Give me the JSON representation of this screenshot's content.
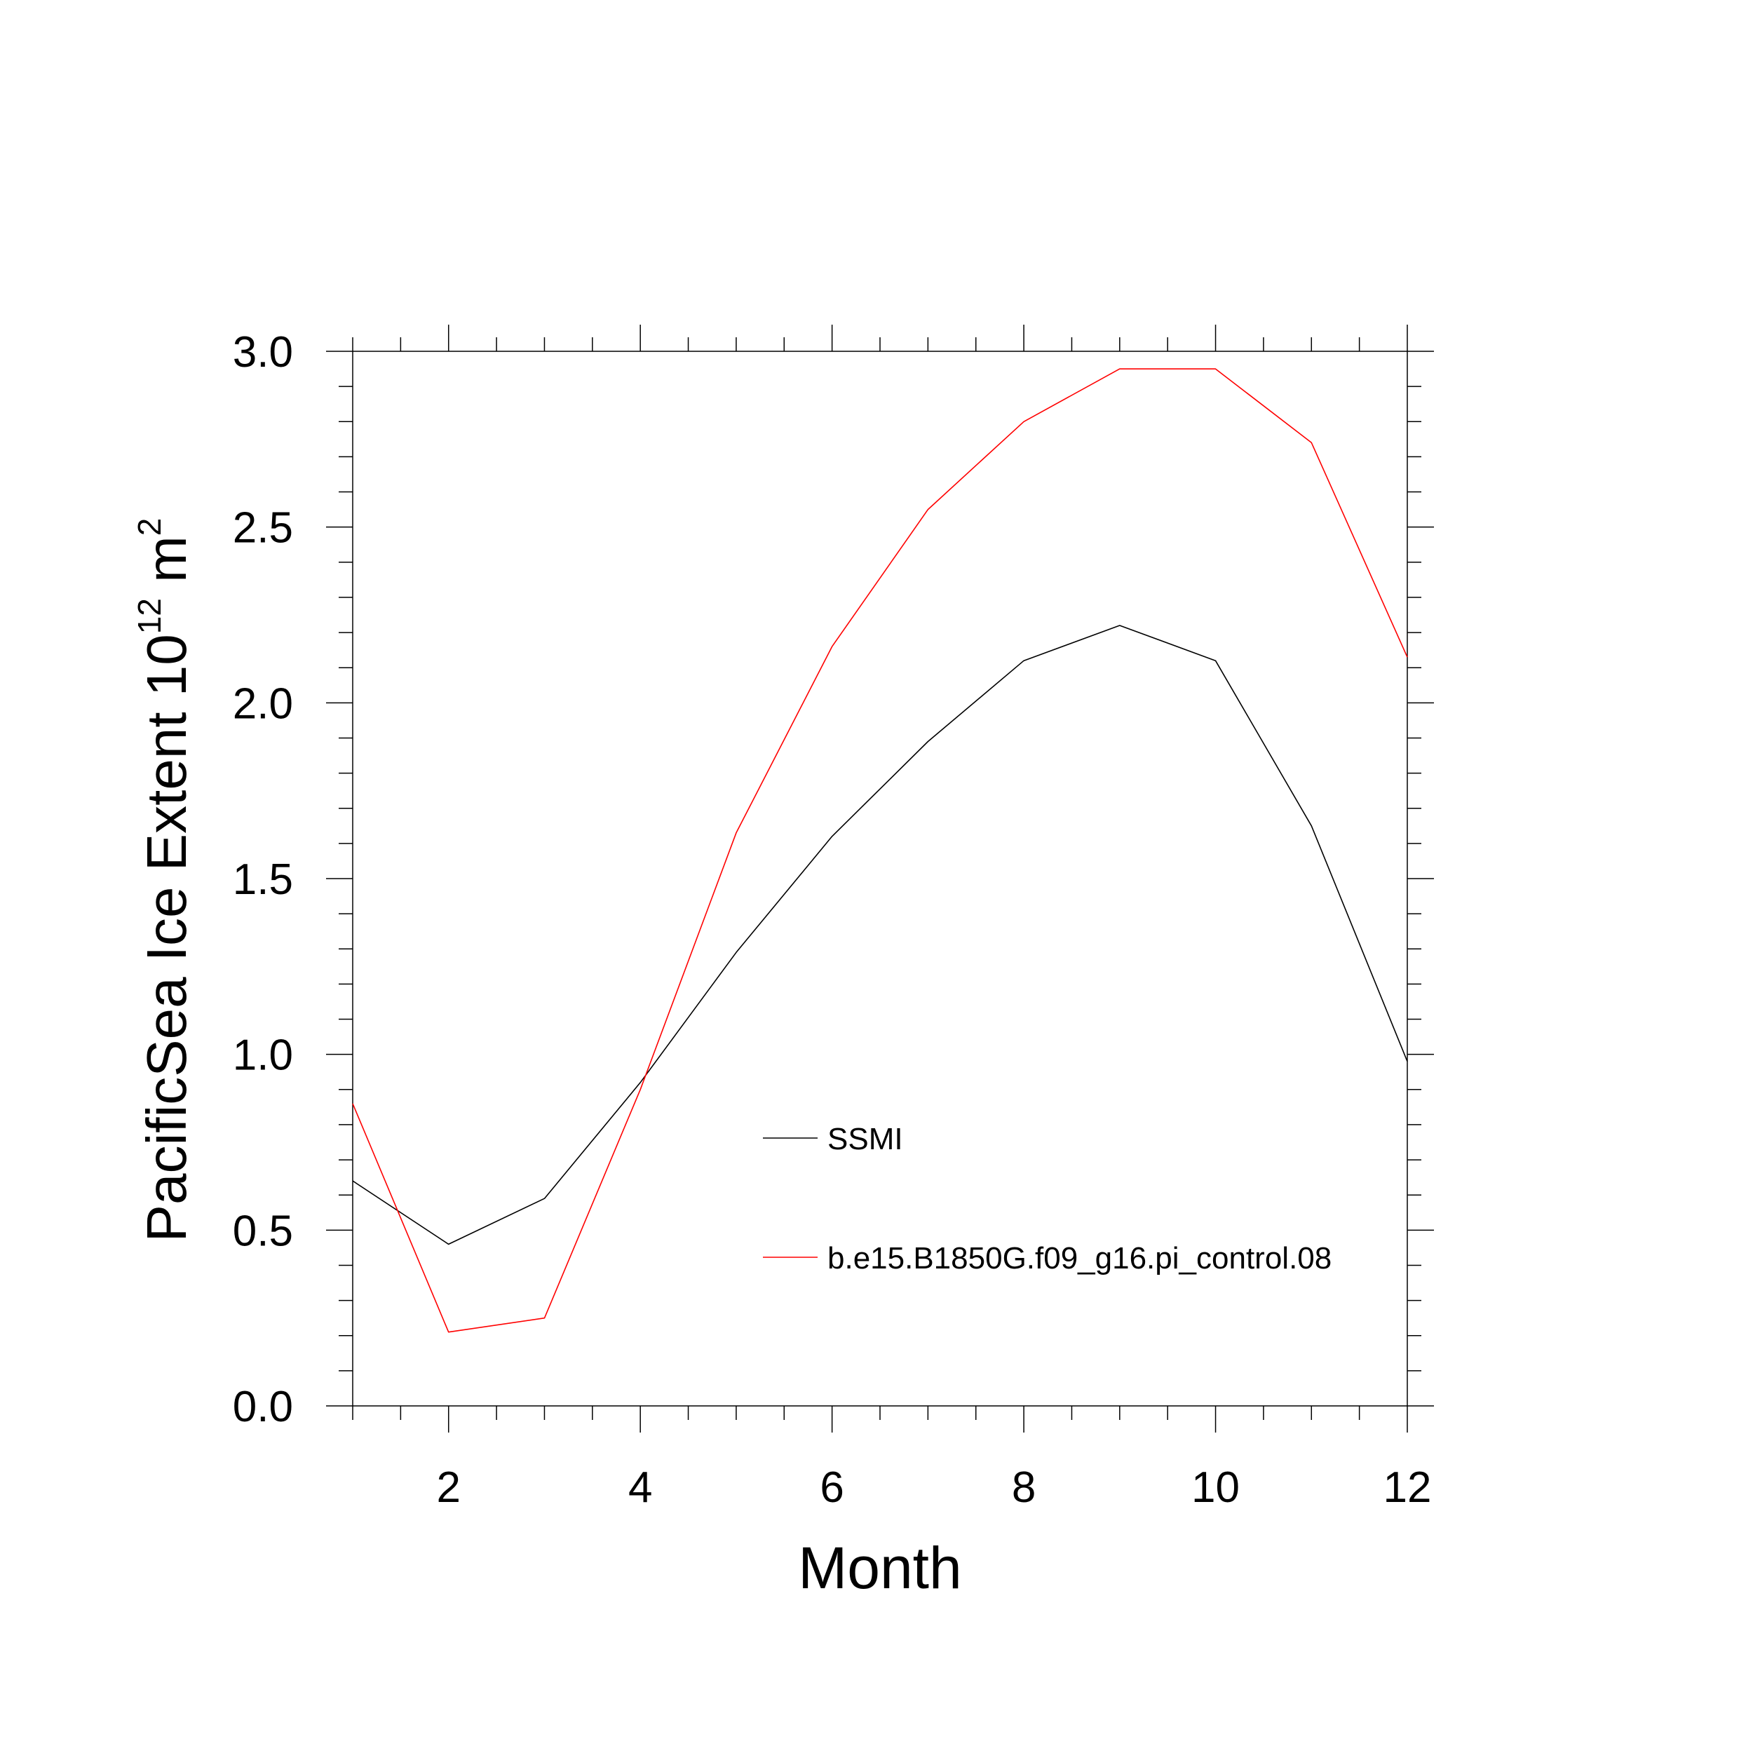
{
  "chart_data": {
    "type": "line",
    "title": "",
    "xlabel": "Month",
    "ylabel_main": "PacificSea Ice Extent 10",
    "ylabel_exp": "12",
    "ylabel_unit": "m",
    "ylabel_unit_exp": "2",
    "xlim": [
      1,
      12
    ],
    "ylim": [
      0,
      3
    ],
    "x_ticks": [
      2,
      4,
      6,
      8,
      10,
      12
    ],
    "x_tick_labels": [
      "2",
      "4",
      "6",
      "8",
      "10",
      "12"
    ],
    "y_ticks": [
      0,
      0.5,
      1,
      1.5,
      2,
      2.5,
      3
    ],
    "y_tick_labels": [
      "0.0",
      "0.5",
      "1.0",
      "1.5",
      "2.0",
      "2.5",
      "3.0"
    ],
    "grid": false,
    "legend_position": "lower-right",
    "x": [
      1,
      2,
      3,
      4,
      5,
      6,
      7,
      8,
      9,
      10,
      11,
      12
    ],
    "series": [
      {
        "name": "SSMI",
        "color": "#000000",
        "values": [
          0.64,
          0.46,
          0.59,
          0.92,
          1.29,
          1.62,
          1.89,
          2.12,
          2.22,
          2.12,
          1.65,
          0.98
        ]
      },
      {
        "name": "b.e15.B1850G.f09_g16.pi_control.08",
        "color": "#ff0000",
        "values": [
          0.86,
          0.21,
          0.25,
          0.9,
          1.63,
          2.16,
          2.55,
          2.8,
          2.95,
          2.95,
          2.74,
          2.13
        ]
      }
    ]
  }
}
